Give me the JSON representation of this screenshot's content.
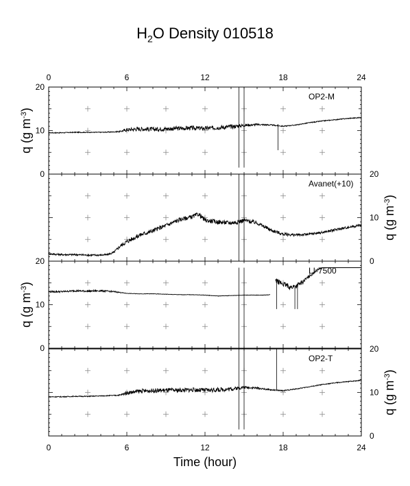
{
  "title": {
    "prefix": "H",
    "subscript": "2",
    "suffix": "O Density 010518"
  },
  "chart_data": {
    "type": "line",
    "xlabel": "Time (hour)",
    "xlim": [
      0,
      24
    ],
    "xticks": [
      0,
      6,
      12,
      18,
      24
    ],
    "ylabel_main": "q (g m",
    "ylabel_sup": "-3",
    "ylabel_close": ")",
    "panels": [
      {
        "name": "OP2-M",
        "ylabel_side": "left",
        "ylim": [
          0,
          20
        ],
        "yticks": [
          0,
          10,
          20
        ],
        "series": [
          {
            "x": [
              0,
              1,
              2,
              3,
              4,
              5,
              5.5,
              6,
              7,
              8,
              9,
              10,
              11,
              12,
              13,
              14,
              15,
              16,
              17,
              18,
              19,
              20,
              21,
              22,
              23,
              24
            ],
            "y": [
              9.5,
              9.5,
              9.6,
              9.6,
              9.6,
              9.7,
              9.8,
              10.2,
              10.4,
              10.3,
              10.4,
              10.5,
              10.6,
              10.5,
              10.7,
              10.9,
              11.2,
              11.4,
              11.3,
              11.0,
              11.3,
              11.8,
              12.2,
              12.5,
              12.8,
              13.0
            ],
            "noise": [
              0.2,
              0.2,
              0.2,
              0.2,
              0.2,
              0.2,
              0.3,
              0.8,
              1.0,
              1.0,
              1.0,
              1.0,
              1.0,
              1.0,
              1.0,
              1.0,
              0.7,
              0.4,
              0.3,
              0.2,
              0.2,
              0.2,
              0.2,
              0.2,
              0.2,
              0.2
            ]
          }
        ],
        "spikes": [
          {
            "x": 14.6,
            "y0": 1.5,
            "y1": 20
          },
          {
            "x": 15.0,
            "y0": 1.5,
            "y1": 20
          },
          {
            "x": 17.6,
            "y0": 5.5,
            "y1": 11.5
          }
        ]
      },
      {
        "name": "Avanet(+10)",
        "ylabel_side": "right",
        "ylim": [
          0,
          20
        ],
        "yticks": [
          0,
          10,
          20
        ],
        "series": [
          {
            "x": [
              0,
              1,
              2,
              3,
              4,
              4.5,
              5,
              5.5,
              6,
              7,
              8,
              9,
              10,
              11,
              11.5,
              12,
              13,
              14,
              14.5,
              15,
              16,
              17,
              18,
              19,
              20,
              21,
              22,
              23,
              24
            ],
            "y": [
              1.7,
              1.5,
              1.5,
              1.4,
              1.4,
              1.5,
              2.0,
              3.5,
              4.5,
              6.0,
              7.0,
              8.2,
              9.5,
              10.2,
              10.8,
              9.4,
              9.0,
              8.8,
              9.0,
              9.4,
              8.8,
              7.2,
              6.2,
              6.0,
              6.2,
              6.6,
              7.2,
              7.8,
              8.3
            ],
            "noise": [
              0.4,
              0.4,
              0.4,
              0.4,
              0.4,
              0.4,
              0.6,
              0.8,
              1.0,
              1.0,
              1.0,
              1.0,
              1.0,
              1.0,
              1.0,
              1.0,
              1.0,
              1.0,
              1.0,
              1.0,
              0.9,
              0.8,
              0.7,
              0.6,
              0.6,
              0.6,
              0.6,
              0.6,
              0.6
            ]
          }
        ],
        "spikes": [
          {
            "x": 14.6,
            "y0": 0,
            "y1": 20
          },
          {
            "x": 15.0,
            "y0": 0,
            "y1": 20
          }
        ]
      },
      {
        "name": "LI-7500",
        "ylabel_side": "left",
        "ylim": [
          0,
          20
        ],
        "yticks": [
          0,
          10,
          20
        ],
        "series": [
          {
            "x": [
              0,
              1,
              2,
              3,
              4,
              5,
              5.5,
              6,
              7,
              8,
              9,
              10,
              11,
              12,
              13,
              14,
              15,
              16,
              16.5,
              17
            ],
            "y": [
              13.0,
              13.0,
              13.2,
              13.1,
              13.2,
              13.0,
              12.8,
              12.6,
              12.5,
              12.5,
              12.4,
              12.3,
              12.3,
              12.2,
              12.0,
              12.1,
              12.2,
              12.2,
              12.2,
              12.3
            ],
            "noise": [
              0.4,
              0.4,
              0.4,
              0.4,
              0.4,
              0.3,
              0.2,
              0.1,
              0.1,
              0.1,
              0.1,
              0.1,
              0.1,
              0.1,
              0.1,
              0.1,
              0.1,
              0.1,
              0.1,
              0.1
            ]
          },
          {
            "x": [
              17.4,
              17.8,
              18.2,
              18.6,
              19.0,
              19.4,
              19.8,
              20.2,
              20.6,
              21
            ],
            "y": [
              15.5,
              15.0,
              14.5,
              14.0,
              14.3,
              15.0,
              16.0,
              17.0,
              18.0,
              18.5
            ],
            "noise": [
              1.0,
              1.2,
              1.2,
              1.2,
              1.2,
              1.0,
              0.8,
              0.6,
              0.4,
              0.2
            ]
          },
          {
            "x": [
              21,
              22,
              23,
              24
            ],
            "y": [
              18.5,
              18.5,
              18.5,
              18.5
            ],
            "noise": [
              0,
              0,
              0,
              0
            ]
          }
        ],
        "spikes": [
          {
            "x": 14.6,
            "y0": 0,
            "y1": 18.5
          },
          {
            "x": 15.0,
            "y0": 0,
            "y1": 18.5
          },
          {
            "x": 17.5,
            "y0": 9.0,
            "y1": 16.0
          },
          {
            "x": 18.9,
            "y0": 9.0,
            "y1": 14.0
          },
          {
            "x": 19.1,
            "y0": 9.0,
            "y1": 14.0
          }
        ]
      },
      {
        "name": "OP2-T",
        "ylabel_side": "right",
        "ylim": [
          0,
          20
        ],
        "yticks": [
          0,
          10,
          20
        ],
        "series": [
          {
            "x": [
              0,
              1,
              2,
              3,
              4,
              5,
              5.5,
              6,
              7,
              8,
              9,
              10,
              11,
              12,
              13,
              14,
              15,
              16,
              17,
              18,
              19,
              20,
              21,
              22,
              23,
              24
            ],
            "y": [
              9.0,
              9.0,
              9.1,
              9.1,
              9.2,
              9.3,
              9.4,
              9.9,
              10.3,
              10.4,
              10.5,
              10.5,
              10.6,
              10.5,
              10.6,
              10.8,
              11.2,
              11.0,
              10.6,
              10.4,
              10.8,
              11.3,
              11.8,
              12.2,
              12.5,
              12.8
            ],
            "noise": [
              0.2,
              0.2,
              0.2,
              0.2,
              0.2,
              0.2,
              0.3,
              0.8,
              1.0,
              1.0,
              1.0,
              1.0,
              1.0,
              1.0,
              1.0,
              1.0,
              0.6,
              0.4,
              0.3,
              0.2,
              0.2,
              0.2,
              0.2,
              0.2,
              0.2,
              0.2
            ]
          }
        ],
        "spikes": [
          {
            "x": 14.6,
            "y0": 1.5,
            "y1": 20
          },
          {
            "x": 15.0,
            "y0": 1.5,
            "y1": 20
          },
          {
            "x": 17.5,
            "y0": 10.5,
            "y1": 20
          }
        ]
      }
    ]
  }
}
